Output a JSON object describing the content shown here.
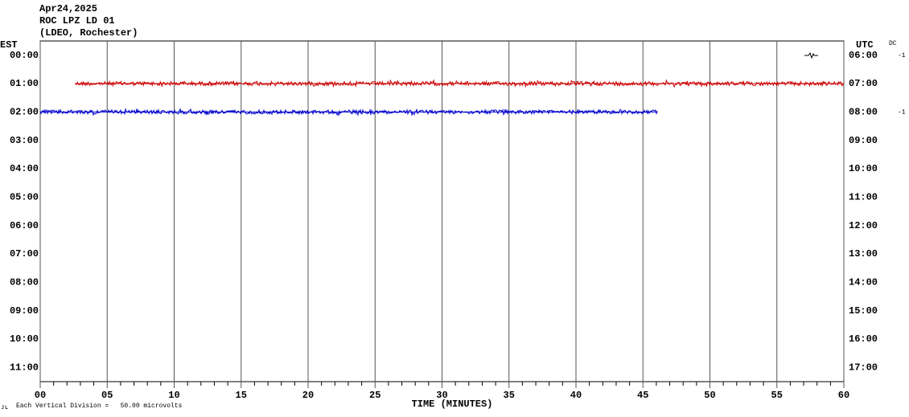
{
  "chart_data": {
    "type": "helicorder",
    "title_lines": [
      "Apr24,2025",
      "ROC LPZ LD 01",
      "(LDEO, Rochester)"
    ],
    "left_axis_label": "EST",
    "right_axis_label": "UTC",
    "dc_label": "DC",
    "xlabel": "TIME (MINUTES)",
    "footnote": "Each Vertical Division =   50.00 microvolts",
    "xlim": [
      0,
      60
    ],
    "xticks": [
      {
        "value": 0,
        "label": "00"
      },
      {
        "value": 5,
        "label": "05"
      },
      10,
      15,
      20,
      25,
      30,
      35,
      40,
      45,
      50,
      55,
      60
    ],
    "ylim": [
      -0.5,
      11.5
    ],
    "yticks": [
      {
        "value": 0,
        "label": "00:00"
      },
      {
        "value": 1,
        "label": "01:00"
      },
      {
        "value": 2,
        "label": "02:00"
      },
      {
        "value": 3,
        "label": "03:00"
      },
      {
        "value": 4,
        "label": "04:00"
      },
      {
        "value": 5,
        "label": "05:00"
      },
      {
        "value": 6,
        "label": "06:00"
      },
      {
        "value": 7,
        "label": "07:00"
      },
      {
        "value": 8,
        "label": "08:00"
      },
      {
        "value": 9,
        "label": "09:00"
      },
      {
        "value": 10,
        "label": "10:00"
      },
      {
        "value": 11,
        "label": "11:00"
      }
    ],
    "y2ticks": [
      {
        "value": 0,
        "label": "06:00"
      },
      {
        "value": 1,
        "label": "07:00"
      },
      {
        "value": 2,
        "label": "08:00"
      },
      {
        "value": 3,
        "label": "09:00"
      },
      {
        "value": 4,
        "label": "10:00"
      },
      {
        "value": 5,
        "label": "11:00"
      },
      {
        "value": 6,
        "label": "12:00"
      },
      {
        "value": 7,
        "label": "13:00"
      },
      {
        "value": 8,
        "label": "14:00"
      },
      {
        "value": 9,
        "label": "15:00"
      },
      {
        "value": 10,
        "label": "16:00"
      },
      {
        "value": 11,
        "label": "17:00"
      }
    ],
    "dc_offsets": [
      {
        "row": 0,
        "value": -1
      },
      {
        "row": 2,
        "value": -1
      }
    ],
    "traces": [
      {
        "row": 1,
        "color": "#cc0000",
        "x": [
          2.6,
          60
        ]
      },
      {
        "row": 2,
        "color": "#0000cc",
        "x": [
          0,
          46.1
        ]
      }
    ]
  }
}
